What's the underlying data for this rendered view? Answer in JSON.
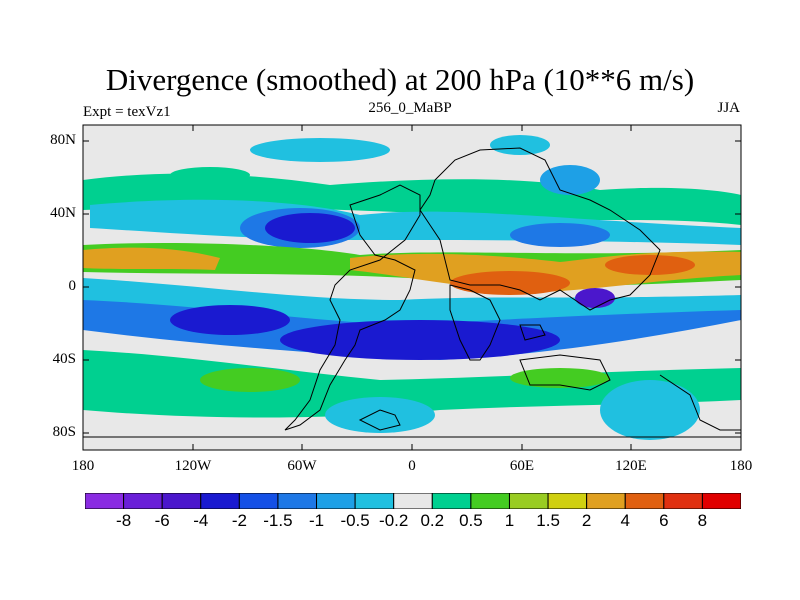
{
  "title": "Divergence (smoothed) at 200 hPa (10**6 m/s)",
  "left_label": "Expt = texVz1",
  "center_label": "256_0_MaBP",
  "right_label": "JJA",
  "latitude_ticks": [
    "80N",
    "40N",
    "0",
    "40S",
    "80S"
  ],
  "longitude_ticks": [
    "180",
    "120W",
    "60W",
    "0",
    "60E",
    "120E",
    "180"
  ],
  "colorbar": {
    "labels": [
      "-8",
      "-6",
      "-4",
      "-2",
      "-1.5",
      "-1",
      "-0.5",
      "-0.2",
      "0.2",
      "0.5",
      "1",
      "1.5",
      "2",
      "4",
      "6",
      "8"
    ],
    "colors": [
      "#8a2be2",
      "#6a1fd8",
      "#4b17cc",
      "#1a1ad0",
      "#1450e6",
      "#1e78e6",
      "#1ea0e6",
      "#20c0e0",
      "#e8e8e8",
      "#00d090",
      "#44cc22",
      "#99cc22",
      "#d0d010",
      "#e0a020",
      "#e06010",
      "#e03010",
      "#e00000"
    ]
  },
  "colors": {
    "background_field": "#e8e8e8",
    "strong_negative": "#1a1ad0",
    "negative": "#1e78e6",
    "weak_negative": "#20c0e0",
    "weak_positive": "#00d090",
    "positive": "#44cc22",
    "strong_positive": "#e0a020",
    "very_positive": "#e06010"
  }
}
